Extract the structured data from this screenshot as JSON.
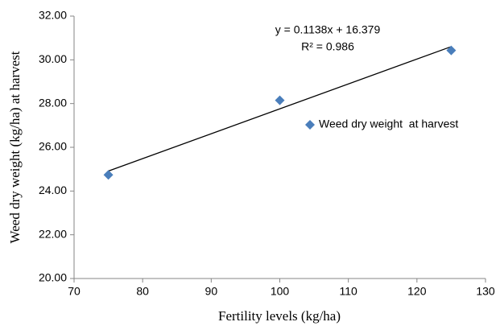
{
  "chart_data": {
    "type": "scatter",
    "x_label": "Fertility levels  (kg/ha)",
    "y_label": "Weed dry weight  (kg/ha)  at harvest",
    "series": [
      {
        "name": "Weed dry weight  at harvest",
        "color": "#4a7ebb",
        "x": [
          75,
          100,
          125
        ],
        "values": [
          24.74,
          28.15,
          30.43
        ]
      }
    ],
    "trendline": {
      "slope": 0.1138,
      "intercept": 16.379,
      "equation": "y = 0.1138x + 16.379",
      "r2": "R² = 0.986",
      "color": "#000000"
    },
    "xlim": [
      70,
      130
    ],
    "xticks": [
      70,
      80,
      90,
      100,
      110,
      120,
      130
    ],
    "ylim": [
      20,
      32
    ],
    "yticks": [
      {
        "value": 20,
        "label": "20.00"
      },
      {
        "value": 22,
        "label": "22.00"
      },
      {
        "value": 24,
        "label": "24.00"
      },
      {
        "value": 26,
        "label": "26.00"
      },
      {
        "value": 28,
        "label": "28.00"
      },
      {
        "value": 30,
        "label": "30.00"
      },
      {
        "value": 32,
        "label": "32.00"
      }
    ],
    "legend": "right",
    "grid": false
  }
}
